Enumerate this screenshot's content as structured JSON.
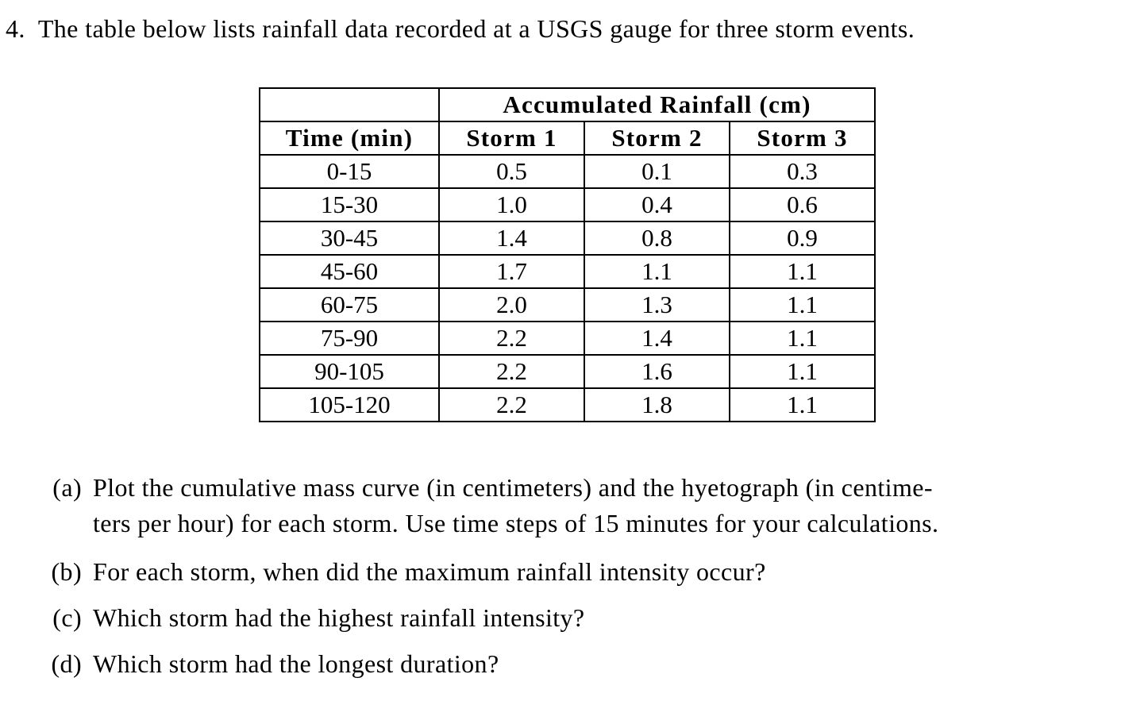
{
  "page": {
    "background": "#ffffff",
    "text_color": "#000000"
  },
  "problem": {
    "number": "4.",
    "intro": "The table below lists rainfall data recorded at a USGS gauge for three storm events."
  },
  "table": {
    "spanning_header": "Accumulated Rainfall (cm)",
    "columns": [
      "Time (min)",
      "Storm 1",
      "Storm 2",
      "Storm 3"
    ],
    "rows": [
      {
        "time": "0-15",
        "storm1": "0.5",
        "storm2": "0.1",
        "storm3": "0.3"
      },
      {
        "time": "15-30",
        "storm1": "1.0",
        "storm2": "0.4",
        "storm3": "0.6"
      },
      {
        "time": "30-45",
        "storm1": "1.4",
        "storm2": "0.8",
        "storm3": "0.9"
      },
      {
        "time": "45-60",
        "storm1": "1.7",
        "storm2": "1.1",
        "storm3": "1.1"
      },
      {
        "time": "60-75",
        "storm1": "2.0",
        "storm2": "1.3",
        "storm3": "1.1"
      },
      {
        "time": "75-90",
        "storm1": "2.2",
        "storm2": "1.4",
        "storm3": "1.1"
      },
      {
        "time": "90-105",
        "storm1": "2.2",
        "storm2": "1.6",
        "storm3": "1.1"
      },
      {
        "time": "105-120",
        "storm1": "2.2",
        "storm2": "1.8",
        "storm3": "1.1"
      }
    ]
  },
  "questions": [
    {
      "label": "(a)",
      "lines": [
        "Plot the cumulative mass curve (in centimeters) and the hyetograph (in centime-",
        "ters per hour) for each storm. Use time steps of 15 minutes for your calculations."
      ]
    },
    {
      "label": "(b)",
      "lines": [
        "For each storm, when did the maximum rainfall intensity occur?"
      ]
    },
    {
      "label": "(c)",
      "lines": [
        "Which storm had the highest rainfall intensity?"
      ]
    },
    {
      "label": "(d)",
      "lines": [
        "Which storm had the longest duration?"
      ]
    }
  ]
}
